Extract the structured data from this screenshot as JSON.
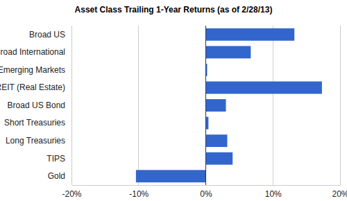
{
  "chart_data": {
    "type": "bar",
    "title": "Asset Class Trailing 1-Year Returns (as of 2/28/13)",
    "orientation": "horizontal",
    "categories": [
      "Broad US",
      "Broad International",
      "Emerging Markets",
      "REIT (Real Estate)",
      "Broad US Bond",
      "Short Treasuries",
      "Long Treasuries",
      "TIPS",
      "Gold"
    ],
    "values": [
      13.2,
      6.7,
      0.2,
      17.3,
      3.0,
      0.4,
      3.2,
      4.0,
      -10.4
    ],
    "color": "#3366cc",
    "xlim": [
      -20,
      20
    ],
    "xticks": [
      {
        "value": -20,
        "label": "-20%"
      },
      {
        "value": -10,
        "label": "-10%"
      },
      {
        "value": 0,
        "label": "0%"
      },
      {
        "value": 10,
        "label": "10%"
      },
      {
        "value": 20,
        "label": "20%"
      }
    ],
    "grid": true
  }
}
